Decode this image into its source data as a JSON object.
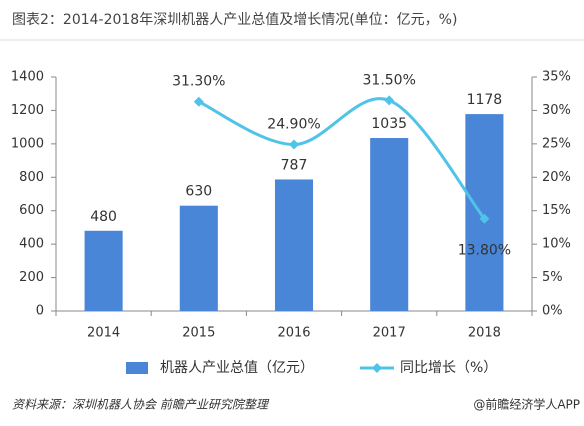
{
  "chart_data": {
    "type": "bar",
    "title": "图表2：2014-2018年深圳机器人产业总值及增长情况(单位：亿元，%)",
    "categories": [
      "2014",
      "2015",
      "2016",
      "2017",
      "2018"
    ],
    "series": [
      {
        "name": "机器人产业总值（亿元）",
        "type": "bar",
        "color": "#4a86d8",
        "values": [
          480,
          630,
          787,
          1035,
          1178
        ]
      },
      {
        "name": "同比增长（%）",
        "type": "line",
        "axis": "y2",
        "color": "#4fc3e8",
        "values": [
          null,
          31.3,
          24.9,
          31.5,
          13.8
        ],
        "value_labels": [
          null,
          "31.30%",
          "24.90%",
          "31.50%",
          "13.80%"
        ]
      }
    ],
    "ylim": [
      0,
      1400
    ],
    "yticks": [
      0,
      200,
      400,
      600,
      800,
      1000,
      1200,
      1400
    ],
    "y2lim": [
      0,
      35
    ],
    "y2ticks": [
      {
        "value": 0,
        "label": "0%"
      },
      {
        "value": 5,
        "label": "5%"
      },
      {
        "value": 10,
        "label": "10%"
      },
      {
        "value": 15,
        "label": "15%"
      },
      {
        "value": 20,
        "label": "20%"
      },
      {
        "value": 25,
        "label": "25%"
      },
      {
        "value": 30,
        "label": "30%"
      },
      {
        "value": 35,
        "label": "35%"
      }
    ],
    "grid": false,
    "legend": "bottom",
    "source": "资料来源：深圳机器人协会 前瞻产业研究院整理",
    "credit": "@前瞻经济学人APP"
  }
}
